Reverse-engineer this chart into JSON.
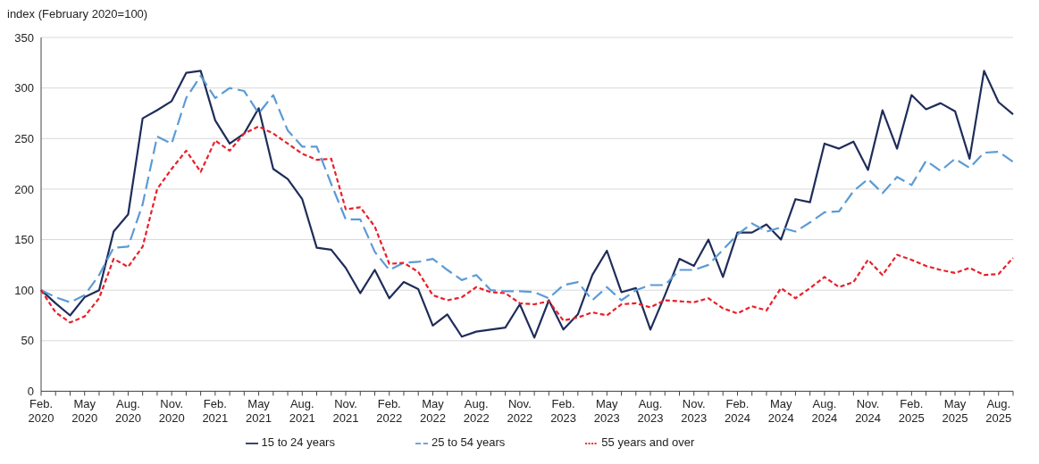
{
  "chart_data": {
    "type": "line",
    "ylabel": "index (February 2020=100)",
    "categories": [
      "Feb. 2020",
      null,
      null,
      "May 2020",
      null,
      null,
      "Aug. 2020",
      null,
      null,
      "Nov. 2020",
      null,
      null,
      "Feb. 2021",
      null,
      null,
      "May 2021",
      null,
      null,
      "Aug. 2021",
      null,
      null,
      "Nov. 2021",
      null,
      null,
      "Feb. 2022",
      null,
      null,
      "May 2022",
      null,
      null,
      "Aug. 2022",
      null,
      null,
      "Nov. 2022",
      null,
      null,
      "Feb. 2023",
      null,
      null,
      "May 2023",
      null,
      null,
      "Aug. 2023",
      null,
      null,
      "Nov. 2023",
      null,
      null,
      "Feb. 2024",
      null,
      null,
      "May 2024",
      null,
      null,
      "Aug. 2024",
      null,
      null,
      "Nov. 2024",
      null,
      null,
      "Feb. 2025",
      null,
      null,
      "May 2025",
      null,
      null,
      "Aug. 2025",
      null
    ],
    "series": [
      {
        "name": "15 to 24 years",
        "color": "#1f2d5a",
        "line_style": "solid",
        "values": [
          100,
          87,
          75,
          93,
          100,
          158,
          175,
          270,
          278,
          287,
          315,
          317,
          268,
          245,
          255,
          280,
          220,
          210,
          190,
          142,
          140,
          122,
          97,
          120,
          92,
          108,
          101,
          65,
          76,
          54,
          59,
          61,
          63,
          86,
          53,
          90,
          61,
          76,
          115,
          139,
          98,
          102,
          61,
          95,
          131,
          124,
          150,
          113,
          157,
          157,
          165,
          150,
          190,
          187,
          245,
          240,
          247,
          219,
          278,
          240,
          293,
          279,
          285,
          277,
          230,
          317,
          286,
          274
        ]
      },
      {
        "name": "25 to 54 years",
        "color": "#5b9bd5",
        "line_style": "dashed",
        "values": [
          100,
          93,
          88,
          95,
          115,
          142,
          143,
          185,
          252,
          245,
          290,
          312,
          290,
          300,
          297,
          275,
          293,
          258,
          242,
          242,
          205,
          170,
          170,
          138,
          120,
          127,
          128,
          131,
          120,
          110,
          115,
          100,
          99,
          99,
          98,
          92,
          105,
          108,
          90,
          103,
          90,
          100,
          105,
          105,
          120,
          120,
          125,
          140,
          155,
          166,
          158,
          162,
          158,
          167,
          177,
          178,
          198,
          210,
          196,
          212,
          204,
          228,
          218,
          230,
          221,
          236,
          237,
          227
        ]
      },
      {
        "name": "55 years and over",
        "color": "#e8202a",
        "line_style": "dotted",
        "values": [
          100,
          78,
          68,
          74,
          92,
          131,
          123,
          143,
          200,
          220,
          238,
          217,
          248,
          238,
          255,
          262,
          255,
          245,
          235,
          229,
          230,
          180,
          182,
          163,
          126,
          127,
          118,
          95,
          90,
          93,
          103,
          98,
          97,
          87,
          86,
          89,
          70,
          73,
          78,
          75,
          86,
          87,
          83,
          90,
          89,
          88,
          92,
          82,
          77,
          84,
          80,
          102,
          92,
          102,
          113,
          103,
          108,
          130,
          115,
          135,
          130,
          124,
          120,
          117,
          122,
          115,
          116,
          132
        ]
      }
    ],
    "ylim": [
      0,
      350
    ],
    "yticks": [
      0,
      50,
      100,
      150,
      200,
      250,
      300,
      350
    ],
    "grid": "y",
    "legend": "bottom",
    "marker": "none"
  }
}
